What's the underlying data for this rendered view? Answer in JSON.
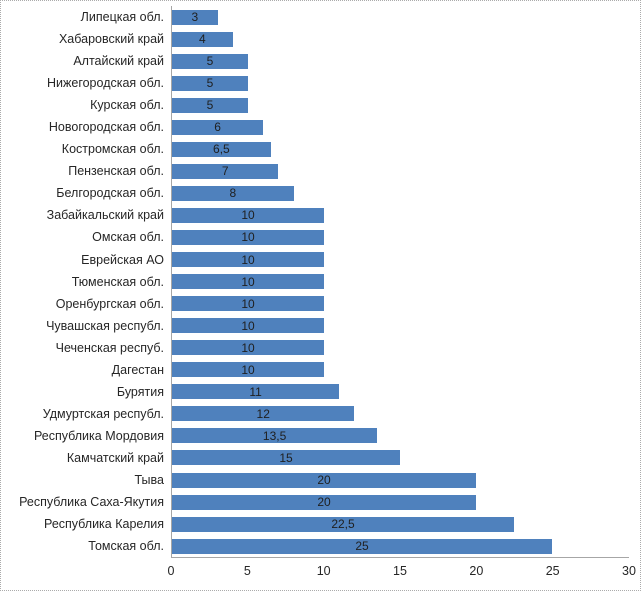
{
  "chart_data": {
    "type": "bar",
    "orientation": "horizontal",
    "title": "",
    "xlabel": "",
    "ylabel": "",
    "grid": false,
    "legend": null,
    "xlim": [
      0,
      30
    ],
    "x_ticks": [
      0,
      5,
      10,
      15,
      20,
      25,
      30
    ],
    "bar_color": "#4F81BD",
    "axis_color": "#A6A6A6",
    "text_color": "#262626",
    "value_label_position": "center",
    "categories": [
      "Липецкая обл.",
      "Хабаровский край",
      "Алтайский край",
      "Нижегородская обл.",
      "Курская обл.",
      "Новогородская обл.",
      "Костромская обл.",
      "Пензенская обл.",
      "Белгородская обл.",
      "Забайкальский край",
      "Омская обл.",
      "Еврейская АО",
      "Тюменская обл.",
      "Оренбургская обл.",
      "Чувашская республ.",
      "Чеченская респуб.",
      "Дагестан",
      "Бурятия",
      "Удмуртская республ.",
      "Республика Мордовия",
      "Камчатский край",
      "Тыва",
      "Республика  Саха-Якутия",
      "Республика Карелия",
      "Томская обл."
    ],
    "values": [
      3,
      4,
      5,
      5,
      5,
      6,
      6.5,
      7,
      8,
      10,
      10,
      10,
      10,
      10,
      10,
      10,
      10,
      11,
      12,
      13.5,
      15,
      20,
      20,
      22.5,
      25
    ],
    "value_labels": [
      "3",
      "4",
      "5",
      "5",
      "5",
      "6",
      "6,5",
      "7",
      "8",
      "10",
      "10",
      "10",
      "10",
      "10",
      "10",
      "10",
      "10",
      "11",
      "12",
      "13,5",
      "15",
      "20",
      "20",
      "22,5",
      "25"
    ],
    "x_tick_labels": [
      "0",
      "5",
      "10",
      "15",
      "20",
      "25",
      "30"
    ]
  }
}
